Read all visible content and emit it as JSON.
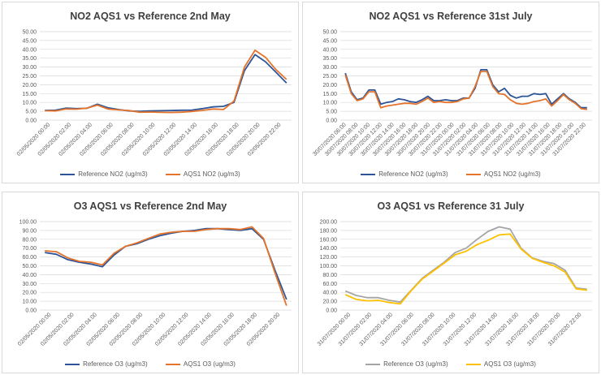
{
  "chart_data": [
    {
      "type": "line",
      "title": "NO2 AQS1 vs Reference 2nd May",
      "ylim": [
        0,
        50
      ],
      "yticks": [
        "0.00",
        "5.00",
        "10.00",
        "15.00",
        "20.00",
        "25.00",
        "30.00",
        "35.00",
        "40.00",
        "45.00",
        "50.00"
      ],
      "xlabels": [
        "02/05/2020 00:00",
        "02/05/2020 02:00",
        "02/05/2020 04:00",
        "02/05/2020 06:00",
        "02/05/2020 08:00",
        "02/05/2020 10:00",
        "02/05/2020 12:00",
        "02/05/2020 14:00",
        "02/05/2020 16:00",
        "02/05/2020 18:00",
        "02/05/2020 20:00",
        "02/05/2020 22:00"
      ],
      "series": [
        {
          "name": "Reference  NO2 (ug/m3)",
          "color": "#2e5597",
          "values": [
            5.5,
            5.6,
            6.8,
            6.5,
            6.7,
            9.0,
            7.0,
            6.0,
            5.2,
            5.0,
            5.2,
            5.3,
            5.4,
            5.6,
            5.7,
            6.5,
            7.5,
            7.8,
            10.0,
            28.0,
            37.0,
            33.0,
            27.0,
            21.0
          ]
        },
        {
          "name": "AQS1 NO2 (ug/m3)",
          "color": "#e4732c",
          "values": [
            5.3,
            5.2,
            6.3,
            6.2,
            6.8,
            8.5,
            6.3,
            5.8,
            5.4,
            4.5,
            4.6,
            4.4,
            4.3,
            4.5,
            4.9,
            5.5,
            6.3,
            6.0,
            10.8,
            30.0,
            39.5,
            35.5,
            28.5,
            23.0
          ]
        }
      ]
    },
    {
      "type": "line",
      "title": "NO2 AQS1 vs Reference 31st July",
      "ylim": [
        0,
        50
      ],
      "yticks": [
        "0.00",
        "5.00",
        "10.00",
        "15.00",
        "20.00",
        "25.00",
        "30.00",
        "35.00",
        "40.00",
        "45.00",
        "50.00"
      ],
      "xlabels": [
        "30/07/2020 06:00",
        "30/07/2020 08:00",
        "30/07/2020 10:00",
        "30/07/2020 12:00",
        "30/07/2020 14:00",
        "30/07/2020 16:00",
        "30/07/2020 18:00",
        "30/07/2020 20:00",
        "30/07/2020 22:00",
        "31/07/2020 00:00",
        "31/07/2020 02:00",
        "31/07/2020 04:00",
        "31/07/2020 06:00",
        "31/07/2020 08:00",
        "31/07/2020 10:00",
        "31/07/2020 12:00",
        "31/07/2020 14:00",
        "31/07/2020 16:00",
        "31/07/2020 18:00",
        "31/07/2020 20:00",
        "31/07/2020 22:00"
      ],
      "series": [
        {
          "name": "Reference  NO2 (ug/m3)",
          "color": "#2e5597",
          "values": [
            26.5,
            16.0,
            11.5,
            12.5,
            17.0,
            17.0,
            9.0,
            10.0,
            10.5,
            12.0,
            11.5,
            10.5,
            10.0,
            11.5,
            13.5,
            11.0,
            11.0,
            11.5,
            11.0,
            11.0,
            12.5,
            12.5,
            18.0,
            28.5,
            28.5,
            20.0,
            16.0,
            18.0,
            14.0,
            12.5,
            13.5,
            13.5,
            15.0,
            14.5,
            15.0,
            9.0,
            12.0,
            15.0,
            12.0,
            10.0,
            7.0,
            7.0
          ]
        },
        {
          "name": "AQS1 NO2 (ug/m3)",
          "color": "#e4732c",
          "values": [
            25.5,
            15.0,
            11.0,
            12.0,
            16.0,
            16.0,
            7.0,
            8.0,
            8.5,
            9.0,
            9.5,
            9.5,
            9.0,
            10.5,
            12.5,
            10.0,
            10.5,
            10.0,
            10.0,
            10.5,
            12.0,
            12.5,
            19.0,
            27.5,
            27.5,
            19.0,
            15.0,
            14.5,
            11.5,
            9.5,
            9.0,
            9.5,
            10.5,
            11.0,
            12.0,
            8.0,
            11.0,
            14.5,
            11.5,
            9.5,
            6.5,
            6.0
          ]
        }
      ]
    },
    {
      "type": "line",
      "title": "O3 AQS1 vs Reference 2nd May",
      "ylim": [
        0,
        100
      ],
      "yticks": [
        "0.00",
        "10.00",
        "20.00",
        "30.00",
        "40.00",
        "50.00",
        "60.00",
        "70.00",
        "80.00",
        "90.00",
        "100.00"
      ],
      "xlabels": [
        "02/05/2020 00:00",
        "02/05/2020 02:00",
        "02/05/2020 04:00",
        "02/05/2020 06:00",
        "02/05/2020 08:00",
        "02/05/2020 10:00",
        "02/05/2020 12:00",
        "02/05/2020 14:00",
        "02/05/2020 16:00",
        "02/05/2020 18:00",
        "02/05/2020 20:00"
      ],
      "series": [
        {
          "name": "Reference O3 (ug/m3)",
          "color": "#2e5597",
          "values": [
            65,
            63,
            57,
            54,
            52,
            49,
            62,
            72,
            75,
            80,
            84,
            87,
            89,
            90,
            92,
            92,
            91,
            90,
            92,
            80,
            45,
            12
          ]
        },
        {
          "name": "AQS1 O3 (ug/m3)",
          "color": "#e4732c",
          "values": [
            67,
            66,
            59,
            55,
            54,
            51,
            64,
            72,
            76,
            81,
            86,
            88,
            89,
            89,
            91,
            92,
            92,
            91,
            94,
            81,
            42,
            5
          ]
        }
      ]
    },
    {
      "type": "line",
      "title": "O3 AQS1 vs Reference 31 July",
      "ylim": [
        0,
        200
      ],
      "yticks": [
        "0.00",
        "20.00",
        "40.00",
        "60.00",
        "80.00",
        "100.00",
        "120.00",
        "140.00",
        "160.00",
        "180.00",
        "200.00"
      ],
      "xlabels": [
        "31/07/2020 00:00",
        "31/07/2020 02:00",
        "31/07/2020 04:00",
        "31/07/2020 06:00",
        "31/07/2020 08:00",
        "31/07/2020 10:00",
        "31/07/2020 12:00",
        "31/07/2020 14:00",
        "31/07/2020 16:00",
        "31/07/2020 18:00",
        "31/07/2020 20:00",
        "31/07/2020 22:00"
      ],
      "series": [
        {
          "name": "Reference O3 (ug/m3)",
          "color": "#a5a5a5",
          "values": [
            43,
            33,
            28,
            28,
            22,
            18,
            45,
            72,
            90,
            108,
            130,
            140,
            160,
            178,
            188,
            183,
            140,
            118,
            110,
            105,
            90,
            50,
            47
          ]
        },
        {
          "name": "AQS1 O3 (ug/m3)",
          "color": "#ffc000",
          "values": [
            35,
            24,
            21,
            22,
            17,
            14,
            44,
            70,
            88,
            106,
            125,
            133,
            148,
            158,
            170,
            172,
            138,
            117,
            108,
            100,
            86,
            48,
            45
          ]
        }
      ]
    }
  ]
}
